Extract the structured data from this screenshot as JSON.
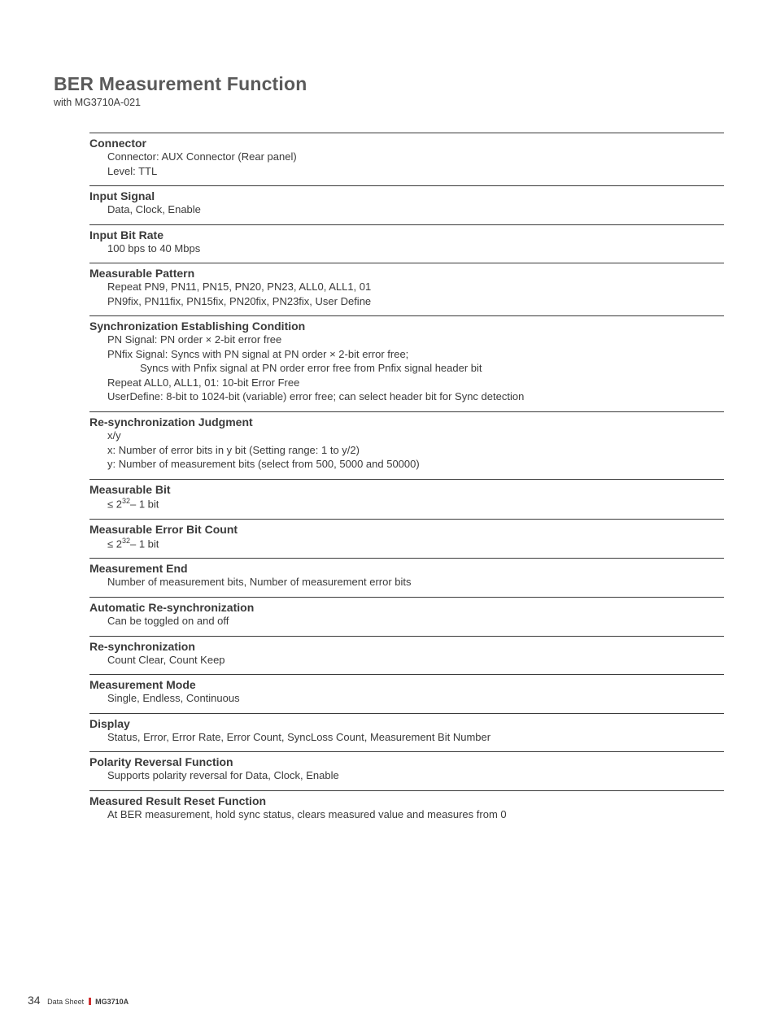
{
  "page": {
    "title": "BER Measurement Function",
    "subtitle": "with MG3710A-021"
  },
  "sections": [
    {
      "heading": "Connector",
      "lines": [
        {
          "text": "Connector: AUX Connector (Rear panel)",
          "indent": 1
        },
        {
          "text": "Level: TTL",
          "indent": 1
        }
      ]
    },
    {
      "heading": "Input Signal",
      "lines": [
        {
          "text": "Data, Clock, Enable",
          "indent": 1
        }
      ]
    },
    {
      "heading": "Input Bit Rate",
      "lines": [
        {
          "text": "100 bps to 40 Mbps",
          "indent": 1
        }
      ]
    },
    {
      "heading": "Measurable Pattern",
      "lines": [
        {
          "text": "Repeat PN9, PN11, PN15, PN20, PN23, ALL0, ALL1, 01",
          "indent": 1
        },
        {
          "text": "PN9fix, PN11fix, PN15fix, PN20fix, PN23fix, User Define",
          "indent": 1
        }
      ]
    },
    {
      "heading": "Synchronization Establishing Condition",
      "lines": [
        {
          "text": "PN Signal: PN order × 2-bit error free",
          "indent": 1
        },
        {
          "text": "PNfix Signal: Syncs with PN signal at PN order × 2-bit error free;",
          "indent": 1
        },
        {
          "text": "Syncs with Pnfix signal at PN order error free from Pnfix signal header bit",
          "indent": 3
        },
        {
          "text": "Repeat ALL0, ALL1, 01: 10-bit Error Free",
          "indent": 1
        },
        {
          "text": "UserDefine: 8-bit to 1024-bit (variable) error free; can select header bit for Sync detection",
          "indent": 1
        }
      ]
    },
    {
      "heading": "Re-synchronization Judgment",
      "lines": [
        {
          "text": "x/y",
          "indent": 1
        },
        {
          "text": "x: Number of error bits in y bit (Setting range: 1 to y/2)",
          "indent": 2
        },
        {
          "text": "y: Number of measurement bits (select from 500, 5000 and 50000)",
          "indent": 2
        }
      ]
    },
    {
      "heading": "Measurable Bit",
      "lines": [
        {
          "text": "≤ 2",
          "exp": "32",
          "after": "– 1 bit",
          "indent": 1
        }
      ]
    },
    {
      "heading": "Measurable Error Bit Count",
      "lines": [
        {
          "text": "≤ 2",
          "exp": "32",
          "after": "– 1 bit",
          "indent": 1
        }
      ]
    },
    {
      "heading": "Measurement End",
      "lines": [
        {
          "text": "Number of measurement bits, Number of measurement error bits",
          "indent": 1
        }
      ]
    },
    {
      "heading": "Automatic Re-synchronization",
      "lines": [
        {
          "text": "Can be toggled on and off",
          "indent": 1
        }
      ]
    },
    {
      "heading": "Re-synchronization",
      "lines": [
        {
          "text": "Count Clear, Count Keep",
          "indent": 1
        }
      ]
    },
    {
      "heading": "Measurement Mode",
      "lines": [
        {
          "text": "Single, Endless, Continuous",
          "indent": 1
        }
      ]
    },
    {
      "heading": "Display",
      "lines": [
        {
          "text": "Status, Error, Error Rate, Error Count, SyncLoss Count, Measurement Bit Number",
          "indent": 1
        }
      ]
    },
    {
      "heading": "Polarity Reversal Function",
      "lines": [
        {
          "text": "Supports polarity reversal for Data, Clock, Enable",
          "indent": 1
        }
      ]
    },
    {
      "heading": "Measured Result Reset Function",
      "lines": [
        {
          "text": "At BER measurement, hold sync status, clears measured value and measures from 0",
          "indent": 1
        }
      ]
    }
  ],
  "footer": {
    "page_number": "34",
    "label": "Data Sheet",
    "model": "MG3710A"
  }
}
